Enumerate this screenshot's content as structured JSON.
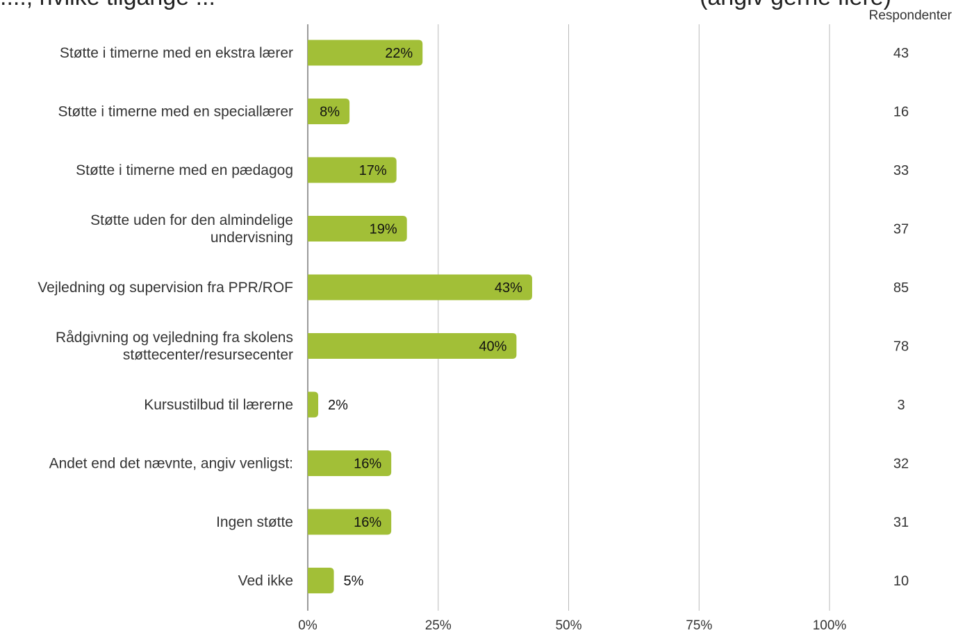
{
  "title_fragment_left": "...., hvilke tilgange ...",
  "title_fragment_right": "(angiv gerne flere)",
  "respondents_header": "Respondenter",
  "colors": {
    "bar": "#a2bf37",
    "grid": "#b9b9b9",
    "axis": "#9a9a9a"
  },
  "chart_data": {
    "type": "bar",
    "orientation": "horizontal",
    "categories": [
      "Støtte i timerne med en ekstra lærer",
      "Støtte i timerne med en speciallærer",
      "Støtte i timerne med en pædagog",
      "Støtte uden for den almindelige undervisning",
      "Vejledning og supervision fra PPR/ROF",
      "Rådgivning og vejledning fra skolens støttecenter/resursecenter",
      "Kursustilbud til lærerne",
      "Andet end det nævnte, angiv venligst:",
      "Ingen støtte",
      "Ved ikke"
    ],
    "category_lines": [
      [
        "Støtte i timerne med en ekstra lærer"
      ],
      [
        "Støtte i timerne med en speciallærer"
      ],
      [
        "Støtte i timerne med en pædagog"
      ],
      [
        "Støtte uden for den almindelige",
        "undervisning"
      ],
      [
        "Vejledning og supervision fra PPR/ROF"
      ],
      [
        "Rådgivning og vejledning fra skolens",
        "støttecenter/resursecenter"
      ],
      [
        "Kursustilbud til lærerne"
      ],
      [
        "Andet end det nævnte, angiv venligst:"
      ],
      [
        "Ingen støtte"
      ],
      [
        "Ved ikke"
      ]
    ],
    "values": [
      22,
      8,
      17,
      19,
      43,
      40,
      2,
      16,
      16,
      5
    ],
    "value_labels": [
      "22%",
      "8%",
      "17%",
      "19%",
      "43%",
      "40%",
      "2%",
      "16%",
      "16%",
      "5%"
    ],
    "respondents": [
      43,
      16,
      33,
      37,
      85,
      78,
      3,
      32,
      31,
      10
    ],
    "xlim": [
      0,
      100
    ],
    "xticks": [
      0,
      25,
      50,
      75,
      100
    ],
    "xtick_labels": [
      "0%",
      "25%",
      "50%",
      "75%",
      "100%"
    ],
    "grid": true
  }
}
